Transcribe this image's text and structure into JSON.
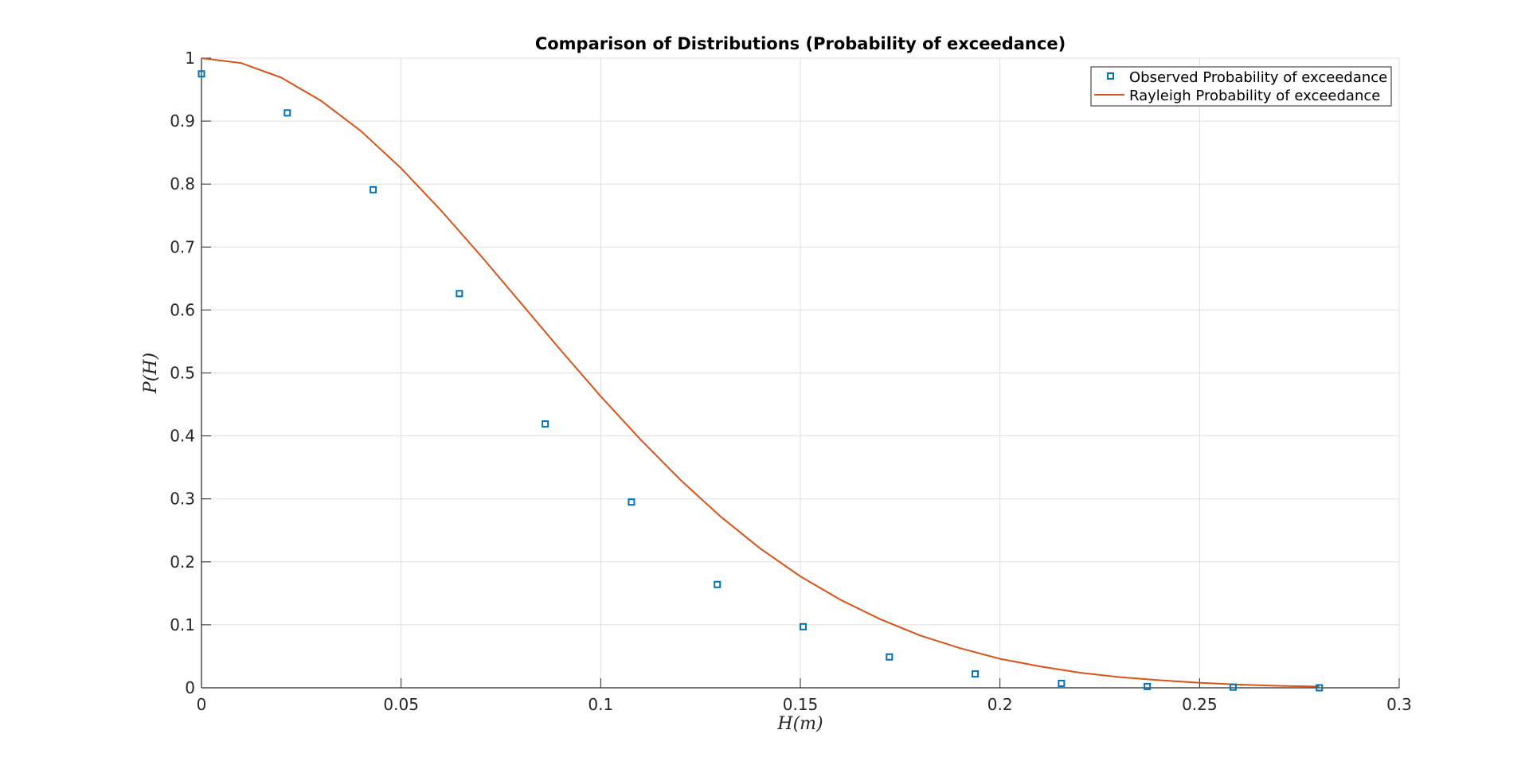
{
  "chart_data": {
    "type": "scatter",
    "title": "Comparison of Distributions (Probability of exceedance)",
    "xlabel": "H(m)",
    "ylabel": "P(H)",
    "xlim": [
      0,
      0.3
    ],
    "ylim": [
      0,
      1
    ],
    "grid": true,
    "legend_placement": "top-right",
    "x_ticks": [
      "0",
      "0.05",
      "0.1",
      "0.15",
      "0.2",
      "0.25",
      "0.3"
    ],
    "y_ticks": [
      "0",
      "0.1",
      "0.2",
      "0.3",
      "0.4",
      "0.5",
      "0.6",
      "0.7",
      "0.8",
      "0.9",
      "1"
    ],
    "series": [
      {
        "name": "Observed Probability of exceedance",
        "kind": "markers",
        "marker": "square",
        "color": "#0072BD",
        "x": [
          0,
          0.0215,
          0.043,
          0.0646,
          0.0861,
          0.1077,
          0.1292,
          0.1507,
          0.1723,
          0.1938,
          0.2154,
          0.2369,
          0.2584,
          0.28
        ],
        "y": [
          0.975,
          0.913,
          0.791,
          0.626,
          0.419,
          0.295,
          0.164,
          0.097,
          0.049,
          0.022,
          0.007,
          0.002,
          0.001,
          0.0
        ]
      },
      {
        "name": "Rayleigh Probability of exceedance",
        "kind": "line",
        "color": "#D95319",
        "x": [
          0,
          0.01,
          0.02,
          0.03,
          0.04,
          0.05,
          0.06,
          0.07,
          0.08,
          0.09,
          0.1,
          0.11,
          0.12,
          0.13,
          0.14,
          0.15,
          0.16,
          0.17,
          0.18,
          0.19,
          0.2,
          0.21,
          0.22,
          0.23,
          0.24,
          0.25,
          0.26,
          0.27,
          0.28
        ],
        "y": [
          1.0,
          0.992,
          0.969,
          0.932,
          0.884,
          0.825,
          0.758,
          0.686,
          0.611,
          0.536,
          0.463,
          0.394,
          0.33,
          0.272,
          0.221,
          0.177,
          0.14,
          0.109,
          0.083,
          0.063,
          0.046,
          0.034,
          0.024,
          0.017,
          0.012,
          0.008,
          0.005,
          0.003,
          0.002
        ]
      }
    ]
  }
}
